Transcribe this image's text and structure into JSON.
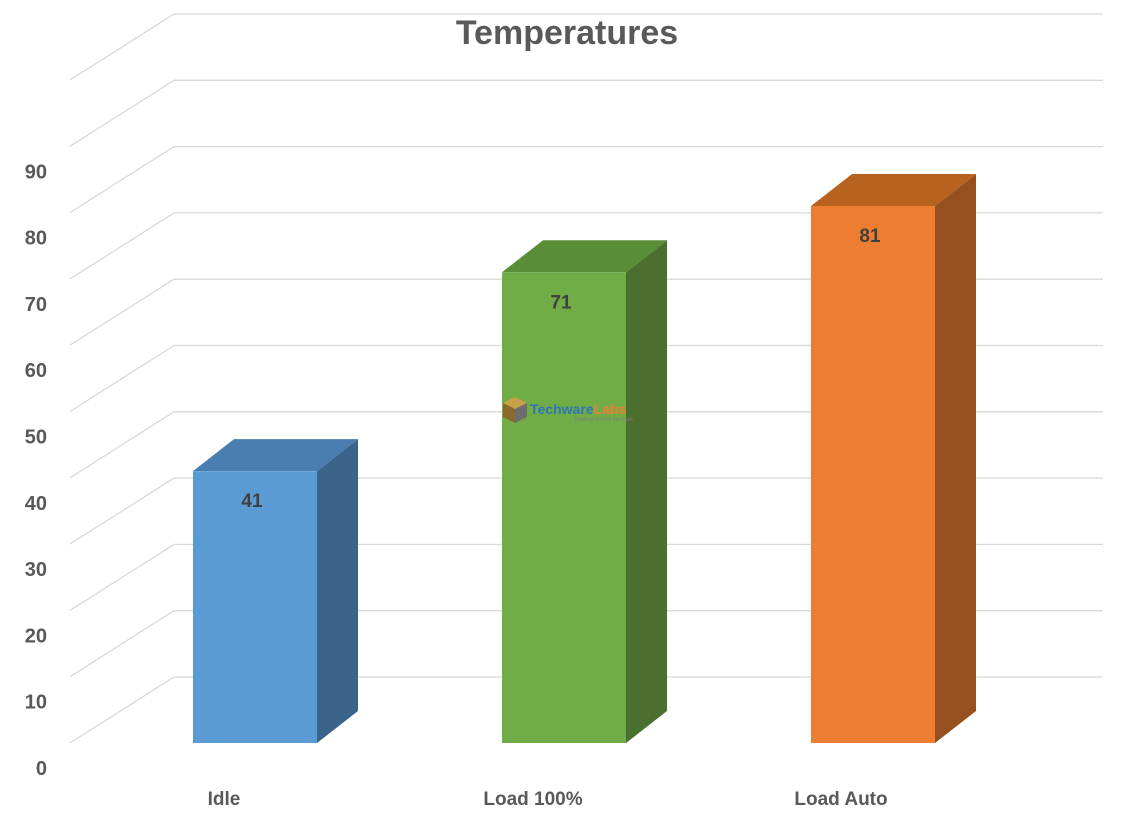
{
  "chart_data": {
    "type": "bar",
    "title": "Temperatures",
    "categories": [
      "Idle",
      "Load 100%",
      "Load Auto"
    ],
    "values": [
      41,
      71,
      81
    ],
    "colors": [
      "#5B9BD5",
      "#70AD47",
      "#ED7D31"
    ],
    "side_colors": [
      "#3A6489",
      "#4A6F2E",
      "#964F1F"
    ],
    "top_colors": [
      "#4A7DB0",
      "#5A8D38",
      "#B8621F"
    ],
    "ylim": [
      0,
      100
    ],
    "yticks": [
      "0",
      "10",
      "20",
      "30",
      "40",
      "50",
      "60",
      "70",
      "80",
      "90"
    ],
    "grid": true,
    "legend": "none",
    "three_d": true
  },
  "watermark": {
    "text_a": "Techware",
    "text_b": "Labs",
    "tagline": "Thinking Outside the Case"
  }
}
